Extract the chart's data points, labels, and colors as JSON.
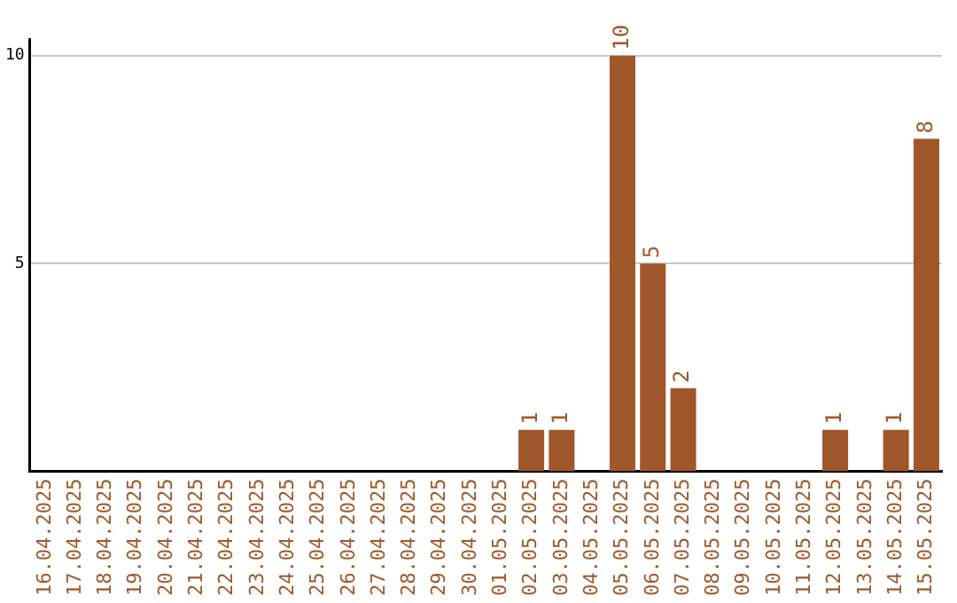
{
  "chart_data": {
    "type": "bar",
    "categories": [
      "16.04.2025",
      "17.04.2025",
      "18.04.2025",
      "19.04.2025",
      "20.04.2025",
      "21.04.2025",
      "22.04.2025",
      "23.04.2025",
      "24.04.2025",
      "25.04.2025",
      "26.04.2025",
      "27.04.2025",
      "28.04.2025",
      "29.04.2025",
      "30.04.2025",
      "01.05.2025",
      "02.05.2025",
      "03.05.2025",
      "04.05.2025",
      "05.05.2025",
      "06.05.2025",
      "07.05.2025",
      "08.05.2025",
      "09.05.2025",
      "10.05.2025",
      "11.05.2025",
      "12.05.2025",
      "13.05.2025",
      "14.05.2025",
      "15.05.2025"
    ],
    "values": [
      0,
      0,
      0,
      0,
      0,
      0,
      0,
      0,
      0,
      0,
      0,
      0,
      0,
      0,
      0,
      0,
      1,
      1,
      0,
      10,
      5,
      2,
      0,
      0,
      0,
      0,
      1,
      0,
      1,
      8
    ],
    "value_labels": [
      null,
      null,
      null,
      null,
      null,
      null,
      null,
      null,
      null,
      null,
      null,
      null,
      null,
      null,
      null,
      null,
      "1",
      "1",
      null,
      "10",
      "5",
      "2",
      null,
      null,
      null,
      null,
      "1",
      null,
      "1",
      "8"
    ],
    "color": "#a0572a",
    "ylim": [
      0,
      10.4
    ],
    "yticks": [
      5,
      10
    ],
    "grid": "y"
  }
}
